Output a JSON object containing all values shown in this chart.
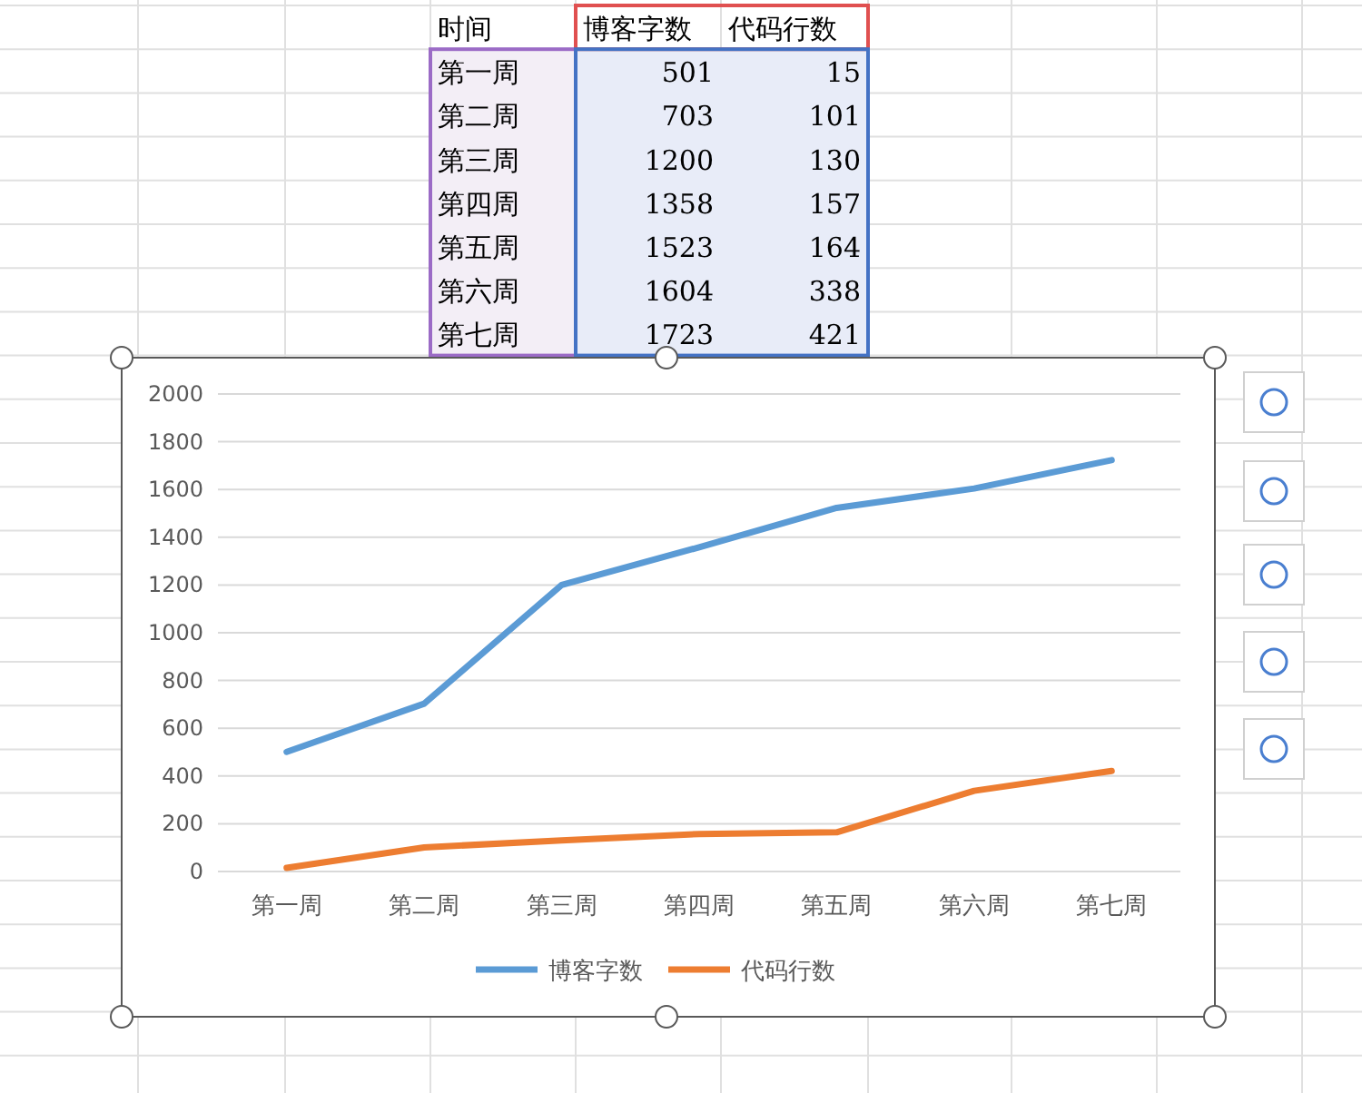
{
  "chart_data": [
    {
      "type": "other",
      "annotations": [
        "时间"
      ],
      "categories": [
        "第一周",
        "第二周",
        "第三周",
        "第四周",
        "第五周",
        "第六周",
        "第七周"
      ],
      "series": [
        {
          "name": "博客字数",
          "values": [
            501,
            703,
            1200,
            1358,
            1523,
            1604,
            1723
          ],
          "value_labels": [
            "501",
            "703",
            "1200",
            "1358",
            "1523",
            "1604",
            "1723"
          ]
        },
        {
          "name": "代码行数",
          "values": [
            15,
            101,
            130,
            157,
            164,
            338,
            421
          ],
          "value_labels": [
            "15",
            "101",
            "130",
            "157",
            "164",
            "338",
            "421"
          ]
        }
      ]
    },
    {
      "type": "line",
      "categories": [
        "第一周",
        "第二周",
        "第三周",
        "第四周",
        "第五周",
        "第六周",
        "第七周"
      ],
      "series": [
        {
          "name": "博客字数",
          "color": "#5b9bd5",
          "values": [
            501,
            703,
            1200,
            1358,
            1523,
            1604,
            1723
          ]
        },
        {
          "name": "代码行数",
          "color": "#ed7d31",
          "values": [
            15,
            101,
            130,
            157,
            164,
            338,
            421
          ]
        }
      ],
      "ylim": [
        0,
        2000
      ],
      "yticks": [
        0,
        200,
        400,
        600,
        800,
        1000,
        1200,
        1400,
        1600,
        1800,
        2000
      ],
      "grid": "y",
      "legend": "bottom",
      "marker": "none",
      "line_style": "solid"
    }
  ]
}
